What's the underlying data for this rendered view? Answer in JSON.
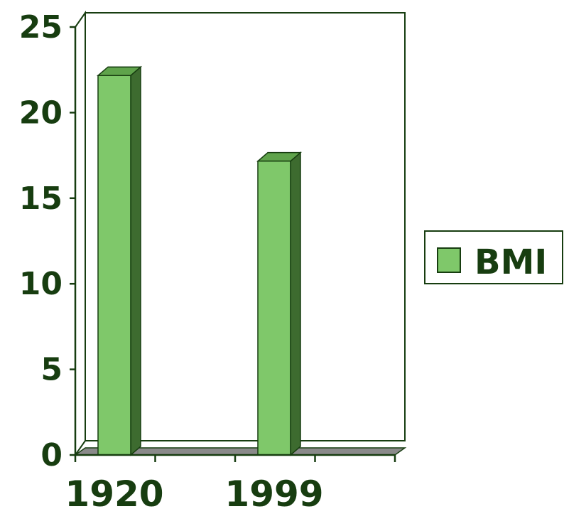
{
  "chart_data": {
    "type": "bar",
    "title": "",
    "xlabel": "",
    "ylabel": "",
    "categories": [
      "1920",
      "1999"
    ],
    "series": [
      {
        "name": "BMI",
        "values": [
          22,
          17
        ]
      }
    ],
    "ylim": [
      0,
      25
    ],
    "yticks": [
      "0",
      "5",
      "10",
      "15",
      "20",
      "25"
    ],
    "grid": true,
    "legend_position": "right",
    "three_d": true
  },
  "colors": {
    "bar_front": "#7fc86a",
    "bar_side": "#3d6b2f",
    "bar_top": "#5fa34b",
    "floor": "#8a8a8a",
    "axis": "#173d10",
    "grid": "#173d10"
  }
}
